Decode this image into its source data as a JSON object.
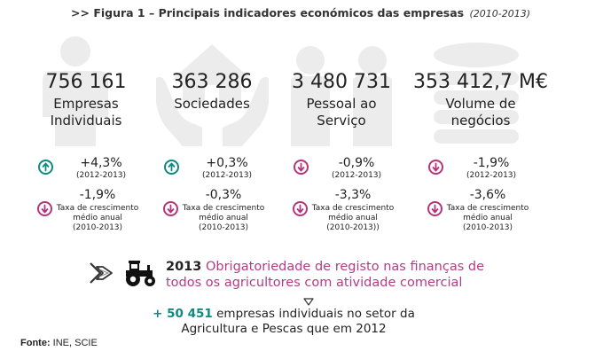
{
  "title": {
    "prefix": ">>",
    "text": "Figura 1 – Principais indicadores económicos das empresas",
    "years": "(2010-2013)"
  },
  "colors": {
    "up": "#0f8a7e",
    "down": "#b5357a",
    "highlight": "#b23c85",
    "background_icon": "#ececec"
  },
  "indicators": [
    {
      "value": "756 161",
      "label_line1": "Empresas",
      "label_line2": "Individuais",
      "icon": "person-icon",
      "change": {
        "direction": "up",
        "pct": "+4,3%",
        "period": "(2012-2013)"
      },
      "avg": {
        "direction": "down",
        "pct": "-1,9%",
        "line1": "Taxa de crescimento",
        "line2": "médio anual",
        "line3": "(2010-2013)"
      }
    },
    {
      "value": "363 286",
      "label_line1": "Sociedades",
      "label_line2": "",
      "icon": "house-hands-icon",
      "change": {
        "direction": "up",
        "pct": "+0,3%",
        "period": "(2012-2013)"
      },
      "avg": {
        "direction": "down",
        "pct": "-0,3%",
        "line1": "Taxa de crescimento",
        "line2": "médio anual",
        "line3": "(2010-2013)"
      }
    },
    {
      "value": "3 480 731",
      "label_line1": "Pessoal ao",
      "label_line2": "Serviço",
      "icon": "people-icon",
      "change": {
        "direction": "down",
        "pct": "-0,9%",
        "period": "(2012-2013)"
      },
      "avg": {
        "direction": "down",
        "pct": "-3,3%",
        "line1": "Taxa de crescimento",
        "line2": "médio anual",
        "line3": "(2010-2013))"
      }
    },
    {
      "value": "353 412,7 M€",
      "label_line1": "Volume de",
      "label_line2": "negócios",
      "icon": "coins-icon",
      "change": {
        "direction": "down",
        "pct": "-1,9%",
        "period": "(2012-2013)"
      },
      "avg": {
        "direction": "down",
        "pct": "-3,6%",
        "line1": "Taxa de crescimento",
        "line2": "médio anual",
        "line3": "(2010-2013)"
      }
    }
  ],
  "highlight": {
    "year": "2013",
    "line1": "Obrigatoriedade de registo nas finanças de",
    "line2": "todos os agricultores com atividade comercial"
  },
  "note": {
    "number": "+ 50 451",
    "line1_rest": "empresas individuais no setor da",
    "line2": "Agricultura e Pescas que em 2012"
  },
  "source": {
    "label": "Fonte:",
    "text": "INE, SCIE"
  }
}
